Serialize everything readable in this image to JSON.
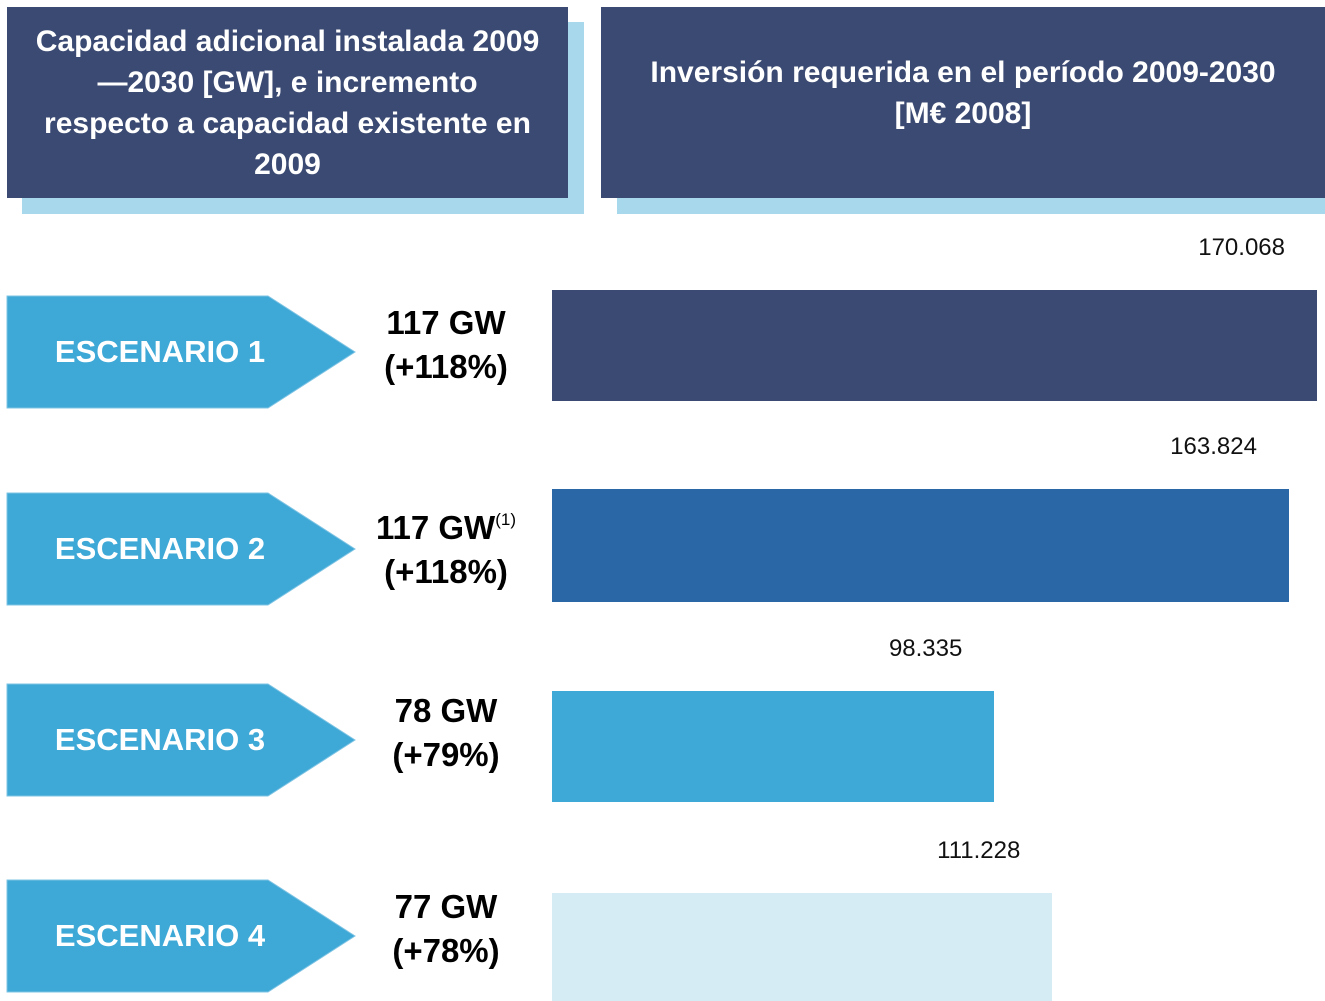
{
  "chart_data": {
    "type": "bar",
    "capacity_title": "Capacidad adicional instalada 2009—2030 [GW], e incremento respecto a capacidad existente en 2009",
    "title": "Inversión requerida en el período 2009-2030 [M€ 2008]",
    "categories": [
      "ESCENARIO 1",
      "ESCENARIO 2",
      "ESCENARIO 3",
      "ESCENARIO 4"
    ],
    "values": [
      170068,
      163824,
      98335,
      111228
    ],
    "value_labels": [
      "170.068",
      "163.824",
      "98.335",
      "111.228"
    ],
    "colors": [
      "#3b4a72",
      "#2a67a7",
      "#3ea8d6",
      "#d5ecf4"
    ],
    "capacity": [
      {
        "value": "117 GW",
        "change": "(+118%)"
      },
      {
        "value": "117 GW",
        "note": "(1)",
        "change": "(+118%)"
      },
      {
        "value": "78 GW",
        "change": "(+79%)"
      },
      {
        "value": "77 GW",
        "change": "(+78%)"
      }
    ]
  }
}
